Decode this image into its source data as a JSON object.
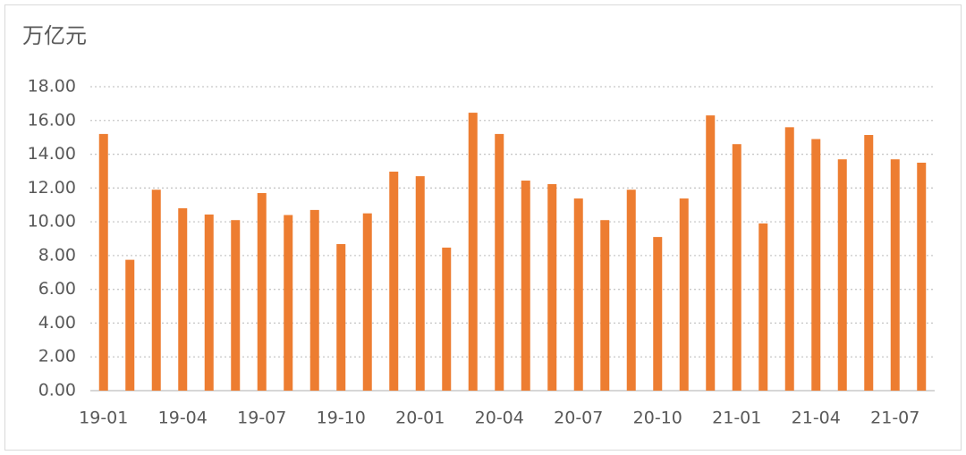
{
  "chart_data": {
    "type": "bar",
    "title": "万亿元",
    "categories": [
      "19-01",
      null,
      null,
      "19-04",
      null,
      null,
      "19-07",
      null,
      null,
      "19-10",
      null,
      null,
      "20-01",
      null,
      null,
      "20-04",
      null,
      null,
      "20-07",
      null,
      null,
      "20-10",
      null,
      null,
      "21-01",
      null,
      null,
      "21-04",
      null,
      null,
      "21-07",
      null
    ],
    "values": [
      15.2,
      7.75,
      11.9,
      10.8,
      10.43,
      10.1,
      11.7,
      10.4,
      10.7,
      8.68,
      10.5,
      12.97,
      12.7,
      8.47,
      16.46,
      15.2,
      12.44,
      12.23,
      11.38,
      10.1,
      11.9,
      9.1,
      11.38,
      16.3,
      14.6,
      9.9,
      15.6,
      14.9,
      13.7,
      15.14,
      13.7,
      13.5
    ],
    "color": "#ed7d31",
    "ylim": [
      0,
      18
    ],
    "yticks": [
      {
        "value": 0,
        "label": "0.00"
      },
      {
        "value": 2,
        "label": "2.00"
      },
      {
        "value": 4,
        "label": "4.00"
      },
      {
        "value": 6,
        "label": "6.00"
      },
      {
        "value": 8,
        "label": "8.00"
      },
      {
        "value": 10,
        "label": "10.00"
      },
      {
        "value": 12,
        "label": "12.00"
      },
      {
        "value": 14,
        "label": "14.00"
      },
      {
        "value": 16,
        "label": "16.00"
      },
      {
        "value": 18,
        "label": "18.00"
      }
    ],
    "grid": true
  }
}
